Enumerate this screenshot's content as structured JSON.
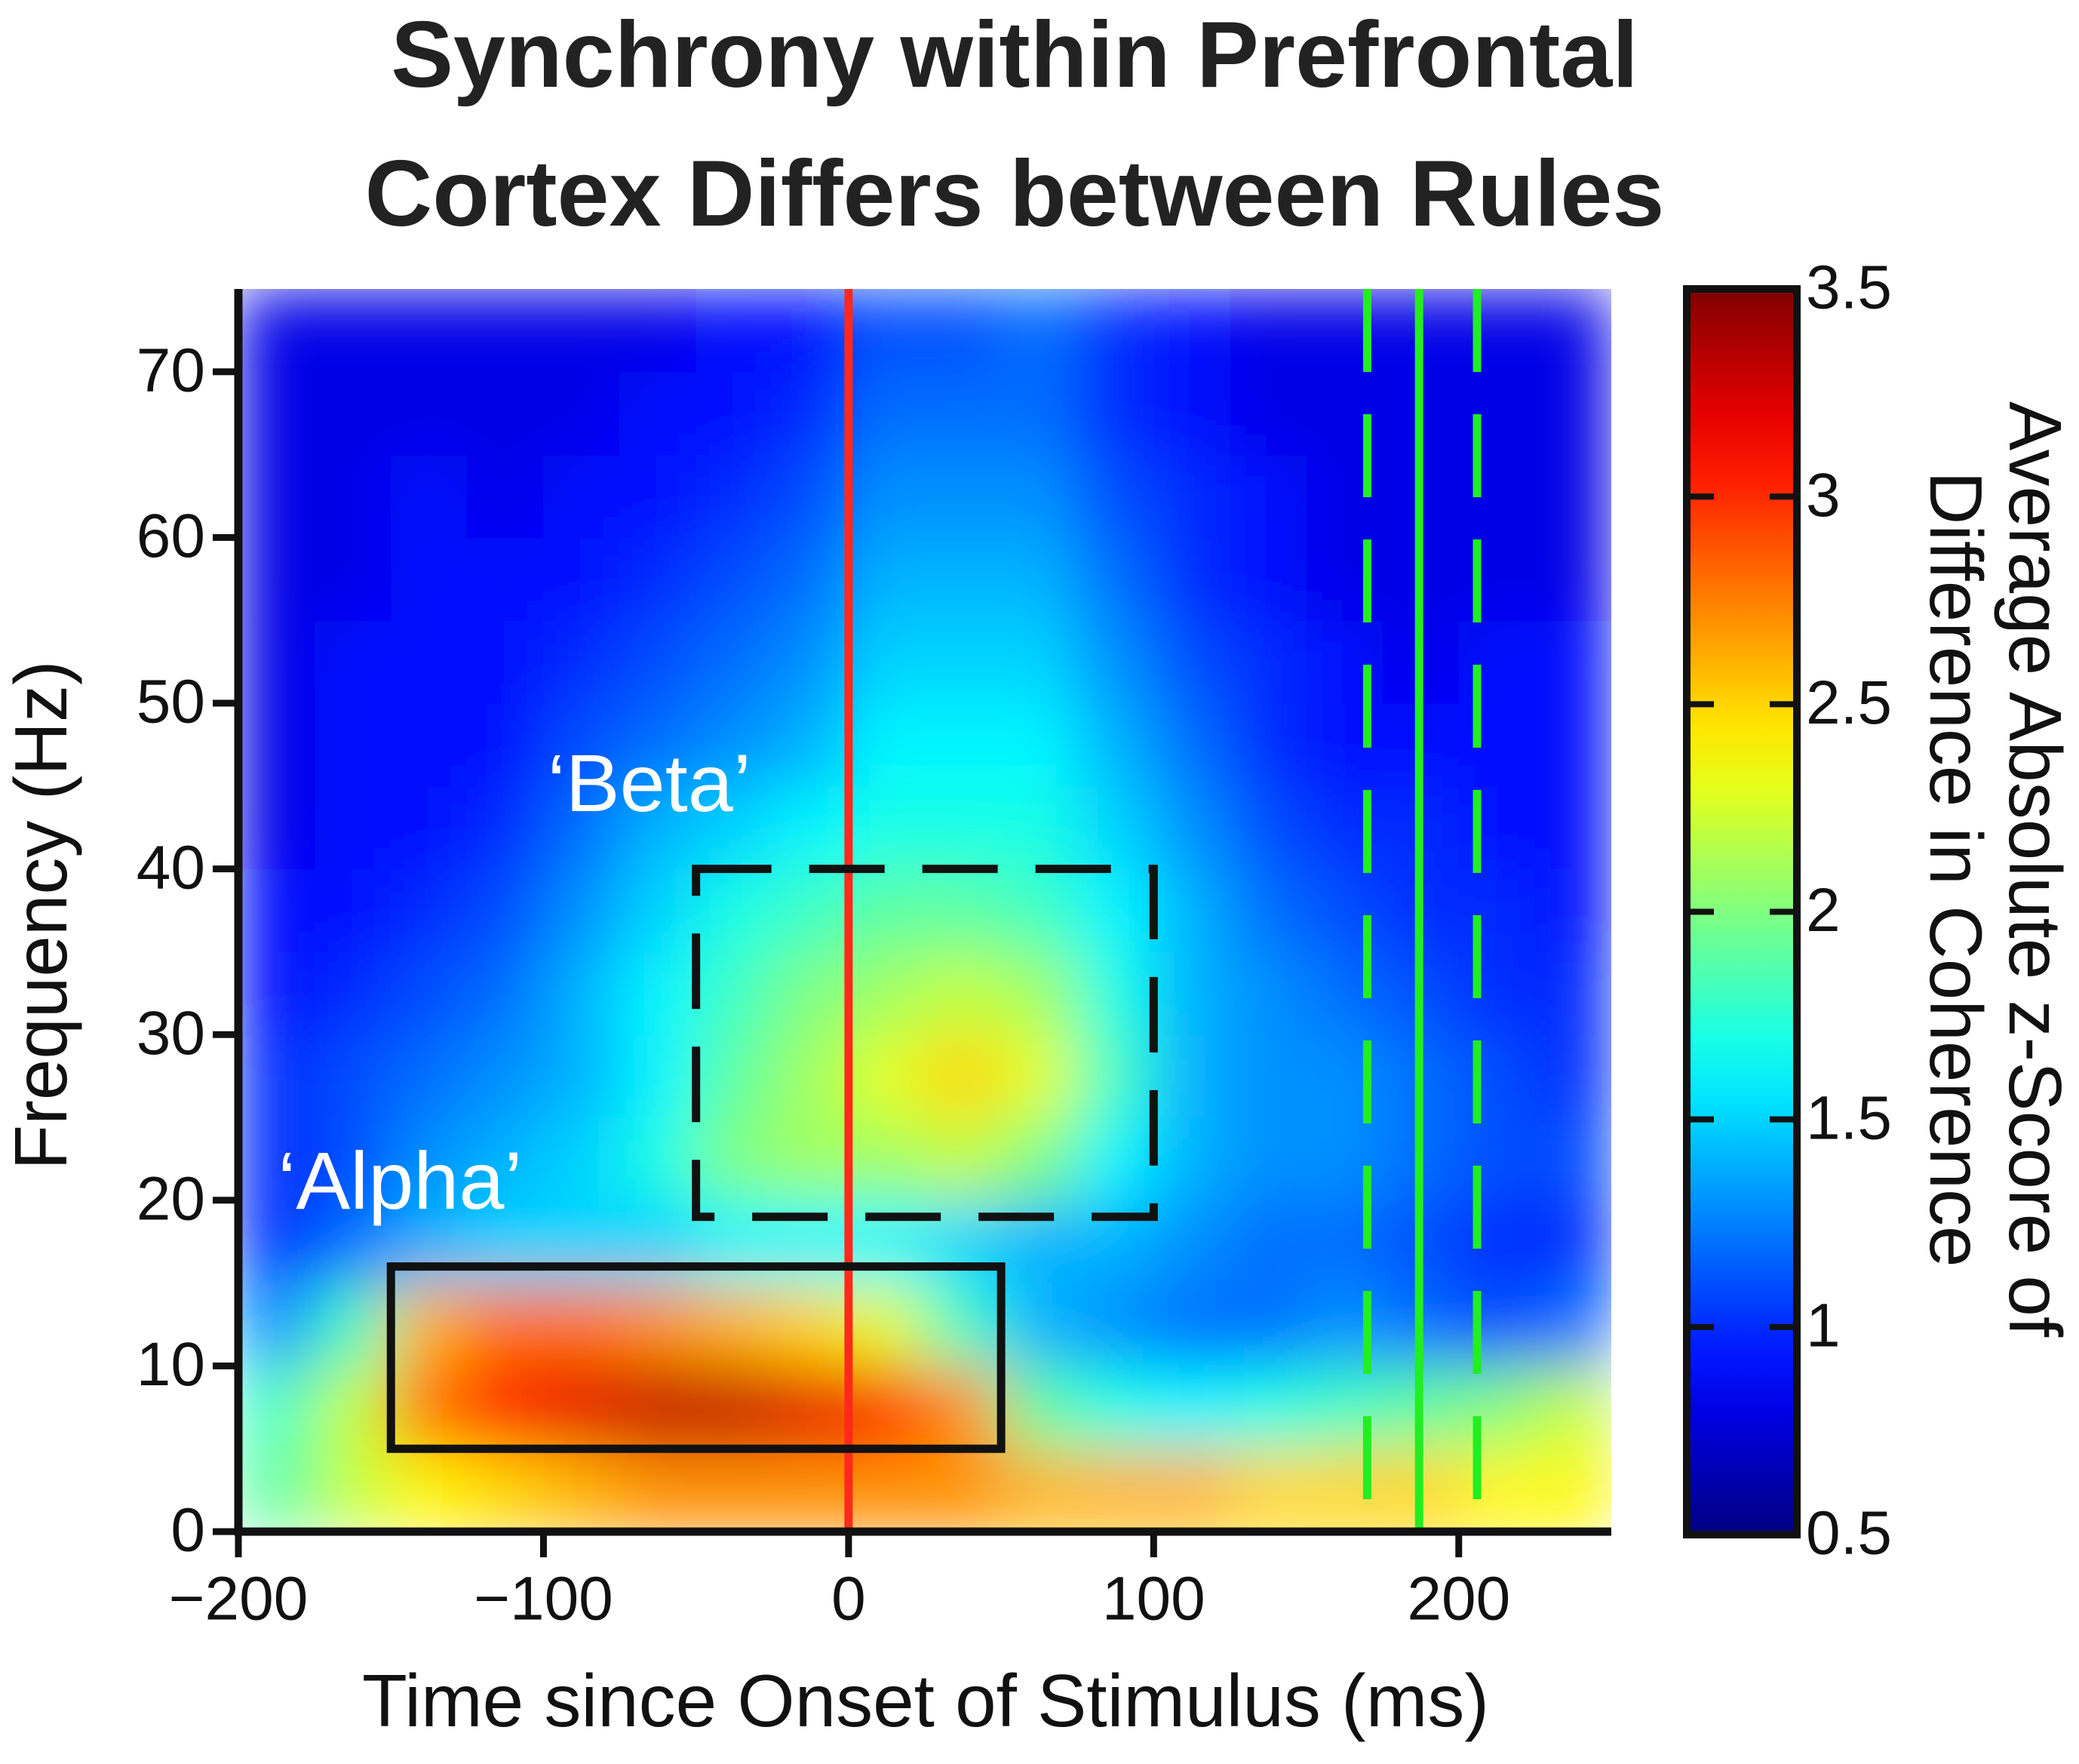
{
  "chart_data": {
    "type": "heatmap",
    "title": [
      "Synchrony within Prefrontal",
      "Cortex Differs between Rules"
    ],
    "xlabel": "Time since Onset of Stimulus (ms)",
    "ylabel": "Frequency (Hz)",
    "colorbar_label": [
      "Average Absolute z-Score of",
      "Difference in Coherence"
    ],
    "colormap": "jet",
    "xlim": [
      -200,
      250
    ],
    "ylim": [
      0,
      75
    ],
    "zlim": [
      0.5,
      3.5
    ],
    "xticks": [
      {
        "value": -200,
        "label": "−200"
      },
      {
        "value": -100,
        "label": "−100"
      },
      0,
      100,
      200
    ],
    "yticks": [
      0,
      10,
      20,
      30,
      40,
      50,
      60,
      70
    ],
    "zticks": [
      0.5,
      1,
      1.5,
      2,
      2.5,
      3,
      3.5
    ],
    "x": [
      -187.5,
      -162.5,
      -137.5,
      -112.5,
      -87.5,
      -62.5,
      -37.5,
      -12.5,
      12.5,
      37.5,
      62.5,
      87.5,
      112.5,
      137.5,
      162.5,
      187.5,
      212.5,
      237.5
    ],
    "y": [
      2.5,
      7.5,
      12.5,
      17.5,
      22.5,
      27.5,
      32.5,
      37.5,
      42.5,
      47.5,
      52.5,
      57.5,
      62.5,
      67.5,
      72.5
    ],
    "z": [
      [
        1.9,
        2.2,
        2.4,
        2.5,
        2.6,
        2.7,
        2.7,
        2.7,
        2.7,
        2.7,
        2.6,
        2.6,
        2.6,
        2.5,
        2.5,
        2.5,
        2.4,
        2.4
      ],
      [
        1.8,
        2.2,
        2.8,
        3.1,
        3.2,
        3.3,
        3.3,
        3.2,
        3.0,
        2.7,
        1.9,
        1.7,
        1.6,
        1.7,
        1.8,
        1.9,
        2.0,
        2.2
      ],
      [
        1.3,
        1.8,
        2.6,
        2.8,
        2.8,
        2.7,
        2.6,
        2.5,
        2.3,
        1.8,
        1.4,
        1.3,
        1.2,
        1.2,
        1.3,
        1.2,
        1.1,
        1.2
      ],
      [
        1.0,
        1.2,
        1.4,
        1.5,
        1.5,
        1.5,
        1.6,
        1.6,
        1.6,
        1.5,
        1.4,
        1.4,
        1.3,
        1.2,
        1.2,
        1.1,
        1.0,
        1.0
      ],
      [
        1.0,
        1.1,
        1.3,
        1.4,
        1.5,
        1.7,
        2.0,
        2.1,
        2.1,
        2.2,
        2.0,
        1.6,
        1.4,
        1.3,
        1.3,
        1.2,
        1.1,
        1.1
      ],
      [
        1.0,
        1.1,
        1.2,
        1.3,
        1.4,
        1.6,
        1.9,
        2.1,
        2.3,
        2.5,
        2.3,
        1.8,
        1.4,
        1.3,
        1.3,
        1.2,
        1.1,
        1.0
      ],
      [
        0.9,
        1.0,
        1.1,
        1.2,
        1.4,
        1.6,
        1.8,
        2.0,
        2.1,
        2.2,
        2.1,
        1.7,
        1.4,
        1.3,
        1.2,
        1.1,
        1.0,
        1.0
      ],
      [
        0.9,
        0.9,
        1.0,
        1.1,
        1.3,
        1.5,
        1.7,
        1.8,
        1.9,
        1.9,
        1.8,
        1.6,
        1.4,
        1.2,
        1.1,
        1.0,
        1.0,
        0.9
      ],
      [
        0.8,
        0.9,
        0.9,
        1.0,
        1.2,
        1.4,
        1.5,
        1.6,
        1.7,
        1.7,
        1.7,
        1.5,
        1.3,
        1.1,
        1.0,
        1.0,
        0.9,
        0.9
      ],
      [
        0.8,
        0.9,
        0.9,
        0.9,
        1.1,
        1.2,
        1.3,
        1.4,
        1.6,
        1.6,
        1.6,
        1.4,
        1.2,
        1.0,
        0.9,
        0.9,
        0.9,
        0.9
      ],
      [
        0.8,
        0.9,
        0.9,
        0.9,
        1.0,
        1.1,
        1.2,
        1.3,
        1.5,
        1.5,
        1.5,
        1.3,
        1.1,
        1.0,
        0.9,
        0.8,
        0.9,
        0.9
      ],
      [
        0.8,
        0.8,
        0.9,
        0.9,
        0.9,
        1.0,
        1.1,
        1.2,
        1.4,
        1.4,
        1.4,
        1.2,
        1.0,
        0.9,
        0.8,
        0.8,
        0.8,
        0.8
      ],
      [
        0.8,
        0.8,
        0.9,
        0.8,
        0.9,
        0.9,
        1.0,
        1.1,
        1.3,
        1.3,
        1.3,
        1.1,
        1.0,
        0.9,
        0.8,
        0.8,
        0.8,
        0.8
      ],
      [
        0.8,
        0.8,
        0.8,
        0.8,
        0.8,
        0.9,
        0.9,
        1.0,
        1.2,
        1.2,
        1.2,
        1.0,
        0.9,
        0.8,
        0.8,
        0.8,
        0.8,
        0.8
      ],
      [
        0.8,
        0.8,
        0.8,
        0.8,
        0.8,
        0.8,
        0.9,
        0.9,
        1.1,
        1.1,
        1.2,
        1.0,
        0.9,
        0.8,
        0.8,
        0.8,
        0.8,
        0.8
      ]
    ],
    "regions": [
      {
        "label": "‘Beta’",
        "xlim": [
          -50,
          100
        ],
        "ylim": [
          19,
          40
        ],
        "dashed": true
      },
      {
        "label": "‘Alpha’",
        "xlim": [
          -150,
          50
        ],
        "ylim": [
          5,
          16
        ],
        "dashed": false
      }
    ],
    "vlines": [
      {
        "x": 0,
        "color": "#ff2a1a",
        "dashed": false
      },
      {
        "x": 170,
        "color": "#22ee22",
        "dashed": true
      },
      {
        "x": 187,
        "color": "#22ee22",
        "dashed": false
      },
      {
        "x": 206,
        "color": "#22ee22",
        "dashed": true
      }
    ]
  }
}
